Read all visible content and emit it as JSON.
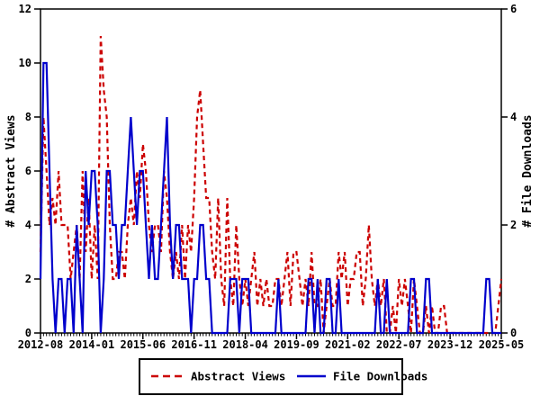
{
  "chart_data": {
    "type": "line",
    "title": "",
    "x_start": "2012-08",
    "x_end": "2025-05",
    "months_total": 154,
    "x_tick_interval_months": 17,
    "x_tick_labels": [
      "2012-08",
      "2014-01",
      "2015-06",
      "2016-11",
      "2018-04",
      "2019-09",
      "2021-02",
      "2022-07",
      "2023-12",
      "2025-05"
    ],
    "left_axis": {
      "label": "# Abstract Views",
      "min": 0,
      "max": 12,
      "ticks": [
        0,
        2,
        4,
        6,
        8,
        10,
        12
      ]
    },
    "right_axis": {
      "label": "# File Downloads",
      "min": 0,
      "max": 6,
      "ticks": [
        0,
        2,
        4,
        6
      ]
    },
    "grid": false,
    "legend": {
      "position": "bottom",
      "items": [
        {
          "label": "Abstract Views",
          "style": "dashed",
          "color": "#cc0000"
        },
        {
          "label": "File Downloads",
          "style": "solid",
          "color": "#0000cc"
        }
      ]
    },
    "series": [
      {
        "name": "Abstract Views",
        "axis": "left",
        "color": "#cc0000",
        "style": "dashed",
        "values": [
          3,
          8,
          6,
          4,
          5,
          4,
          6,
          4,
          4,
          4,
          2,
          3,
          4,
          2,
          6,
          3,
          5,
          2,
          4,
          2,
          11,
          9,
          8,
          4,
          2,
          2,
          3,
          3,
          2,
          4,
          5,
          4,
          6,
          5,
          7,
          6,
          4,
          3,
          4,
          4,
          3,
          6,
          5,
          3,
          2,
          3,
          2,
          4,
          2,
          4,
          3,
          5,
          8,
          9,
          7,
          5,
          5,
          3,
          2,
          5,
          2,
          1,
          5,
          2,
          1,
          4,
          2,
          1,
          2,
          1,
          2,
          3,
          1,
          2,
          1,
          2,
          1,
          1,
          2,
          2,
          1,
          2,
          3,
          1,
          3,
          3,
          2,
          1,
          2,
          1,
          3,
          1,
          1,
          2,
          0,
          1,
          2,
          1,
          1,
          3,
          2,
          3,
          1,
          2,
          2,
          3,
          3,
          1,
          2,
          4,
          2,
          1,
          2,
          1,
          2,
          0,
          0,
          1,
          0,
          2,
          1,
          2,
          1,
          0,
          2,
          1,
          0,
          0,
          1,
          0,
          1,
          0,
          0,
          1,
          1,
          0,
          0,
          0,
          0,
          0,
          0,
          0,
          0,
          0,
          0,
          0,
          0,
          0,
          0,
          0,
          0,
          0,
          1,
          2
        ]
      },
      {
        "name": "File Downloads",
        "axis": "right",
        "color": "#0000cc",
        "style": "solid",
        "values": [
          1,
          5,
          5,
          3,
          1,
          0,
          1,
          1,
          0,
          1,
          1,
          0,
          2,
          1,
          0,
          3,
          2,
          3,
          3,
          2,
          0,
          1,
          3,
          3,
          2,
          2,
          1,
          2,
          2,
          3,
          4,
          3,
          2,
          3,
          3,
          2,
          1,
          2,
          1,
          1,
          2,
          3,
          4,
          2,
          1,
          2,
          2,
          1,
          1,
          1,
          0,
          1,
          1,
          2,
          2,
          1,
          1,
          0,
          0,
          0,
          0,
          0,
          0,
          1,
          1,
          1,
          0,
          1,
          1,
          1,
          0,
          0,
          0,
          0,
          0,
          0,
          0,
          0,
          0,
          1,
          0,
          0,
          0,
          0,
          0,
          0,
          0,
          0,
          0,
          1,
          1,
          0,
          1,
          0,
          0,
          1,
          1,
          0,
          0,
          1,
          0,
          0,
          0,
          0,
          0,
          0,
          0,
          0,
          0,
          0,
          0,
          0,
          1,
          0,
          0,
          1,
          0,
          0,
          0,
          0,
          0,
          0,
          0,
          1,
          1,
          0,
          0,
          0,
          1,
          1,
          0,
          0,
          0,
          0,
          0,
          0,
          0,
          0,
          0,
          0,
          0,
          0,
          0,
          0,
          0,
          0,
          0,
          0,
          1,
          1,
          0,
          0,
          0,
          0
        ]
      }
    ],
    "colors": {
      "axis": "#000000",
      "background": "#ffffff",
      "abstract_views": "#cc0000",
      "file_downloads": "#0000cc"
    }
  }
}
